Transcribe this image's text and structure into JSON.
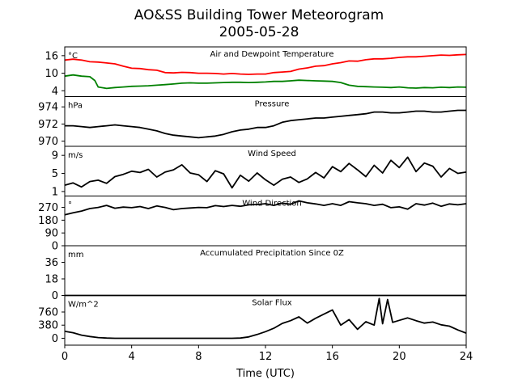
{
  "figure": {
    "title": "AO&SS Building Tower Meteorogram",
    "date": "2005-05-28",
    "xlabel": "Time (UTC)"
  },
  "chart_data": {
    "type": "line",
    "x_range": [
      0,
      24
    ],
    "x_ticks": [
      0,
      4,
      8,
      12,
      16,
      20,
      24
    ],
    "panels": [
      {
        "title": "Air and Dewpoint Temperature",
        "unit": "°C",
        "ylim": [
          2,
          19
        ],
        "yticks": [
          4,
          10,
          16
        ],
        "series": [
          {
            "color": "#ff0000",
            "x": [
              0,
              0.5,
              1,
              1.5,
              2,
              2.5,
              3,
              3.5,
              4,
              4.5,
              5,
              5.5,
              6,
              6.5,
              7,
              7.5,
              8,
              8.5,
              9,
              9.5,
              10,
              10.5,
              11,
              11.5,
              12,
              12.5,
              13,
              13.5,
              14,
              14.5,
              15,
              15.5,
              16,
              16.5,
              17,
              17.5,
              18,
              18.5,
              19,
              19.5,
              20,
              20.5,
              21,
              21.5,
              22,
              22.5,
              23,
              23.5,
              24
            ],
            "y": [
              14.5,
              14.8,
              14.5,
              13.9,
              13.8,
              13.5,
              13.2,
              12.4,
              11.7,
              11.6,
              11.2,
              11.0,
              10.2,
              10.1,
              10.3,
              10.2,
              10.0,
              10.0,
              9.9,
              9.7,
              9.9,
              9.7,
              9.6,
              9.7,
              9.7,
              10.2,
              10.4,
              10.6,
              11.4,
              11.8,
              12.4,
              12.6,
              13.2,
              13.6,
              14.2,
              14.1,
              14.6,
              14.9,
              14.9,
              15.1,
              15.4,
              15.6,
              15.6,
              15.8,
              16.0,
              16.2,
              16.1,
              16.3,
              16.4
            ]
          },
          {
            "color": "#008000",
            "x": [
              0,
              0.5,
              1,
              1.5,
              1.8,
              2,
              2.5,
              3,
              3.5,
              4,
              4.5,
              5,
              5.5,
              6,
              6.5,
              7,
              7.5,
              8,
              8.5,
              9,
              9.5,
              10,
              10.5,
              11,
              11.5,
              12,
              12.5,
              13,
              13.5,
              14,
              14.5,
              15,
              15.5,
              16,
              16.5,
              17,
              17.5,
              18,
              18.5,
              19,
              19.5,
              20,
              20.5,
              21,
              21.5,
              22,
              22.5,
              23,
              23.5,
              24
            ],
            "y": [
              9.0,
              9.4,
              9.0,
              8.8,
              7.5,
              5.3,
              4.8,
              5.1,
              5.3,
              5.5,
              5.6,
              5.7,
              5.9,
              6.1,
              6.3,
              6.6,
              6.7,
              6.6,
              6.6,
              6.7,
              6.8,
              6.9,
              6.9,
              6.8,
              6.9,
              7.0,
              7.2,
              7.2,
              7.4,
              7.6,
              7.5,
              7.4,
              7.3,
              7.2,
              6.8,
              5.9,
              5.5,
              5.4,
              5.3,
              5.2,
              5.1,
              5.3,
              5.0,
              4.9,
              5.1,
              5.0,
              5.2,
              5.1,
              5.3,
              5.2
            ]
          }
        ]
      },
      {
        "title": "Pressure",
        "unit": "hPa",
        "ylim": [
          969.4,
          975.2
        ],
        "yticks": [
          970,
          972,
          974
        ],
        "series": [
          {
            "color": "#000000",
            "x": [
              0,
              0.5,
              1,
              1.5,
              2,
              2.5,
              3,
              3.5,
              4,
              4.5,
              5,
              5.5,
              6,
              6.5,
              7,
              7.5,
              8,
              8.5,
              9,
              9.5,
              10,
              10.5,
              11,
              11.5,
              12,
              12.5,
              13,
              13.5,
              14,
              14.5,
              15,
              15.5,
              16,
              16.5,
              17,
              17.5,
              18,
              18.5,
              19,
              19.5,
              20,
              20.5,
              21,
              21.5,
              22,
              22.5,
              23,
              23.5,
              24
            ],
            "y": [
              971.8,
              971.8,
              971.7,
              971.6,
              971.7,
              971.8,
              971.9,
              971.8,
              971.7,
              971.6,
              971.4,
              971.2,
              970.9,
              970.7,
              970.6,
              970.5,
              970.4,
              970.5,
              970.6,
              970.8,
              971.1,
              971.3,
              971.4,
              971.6,
              971.6,
              971.8,
              972.2,
              972.4,
              972.5,
              972.6,
              972.7,
              972.7,
              972.8,
              972.9,
              973.0,
              973.1,
              973.2,
              973.4,
              973.4,
              973.3,
              973.3,
              973.4,
              973.5,
              973.5,
              973.4,
              973.4,
              973.5,
              973.6,
              973.6
            ]
          }
        ]
      },
      {
        "title": "Wind Speed",
        "unit": "m/s",
        "ylim": [
          0,
          11
        ],
        "yticks": [
          1,
          5,
          9
        ],
        "series": [
          {
            "color": "#000000",
            "x": [
              0,
              0.5,
              1,
              1.5,
              2,
              2.5,
              3,
              3.5,
              4,
              4.5,
              5,
              5.5,
              6,
              6.5,
              7,
              7.5,
              8,
              8.5,
              9,
              9.5,
              10,
              10.5,
              11,
              11.5,
              12,
              12.5,
              13,
              13.5,
              14,
              14.5,
              15,
              15.5,
              16,
              16.5,
              17,
              17.5,
              18,
              18.5,
              19,
              19.5,
              20,
              20.5,
              21,
              21.5,
              22,
              22.5,
              23,
              23.5,
              24
            ],
            "y": [
              2.4,
              2.9,
              2.0,
              3.2,
              3.5,
              2.8,
              4.3,
              4.8,
              5.5,
              5.2,
              5.9,
              4.2,
              5.3,
              5.8,
              6.9,
              5.1,
              4.7,
              3.2,
              5.6,
              4.9,
              1.8,
              4.6,
              3.3,
              5.1,
              3.6,
              2.4,
              3.7,
              4.2,
              3.0,
              3.8,
              5.2,
              4.0,
              6.5,
              5.4,
              7.2,
              5.8,
              4.3,
              6.8,
              5.1,
              7.9,
              6.3,
              8.6,
              5.4,
              7.3,
              6.6,
              4.2,
              6.1,
              5.0,
              5.3
            ]
          }
        ]
      },
      {
        "title": "Wind Direction",
        "unit": "°",
        "ylim": [
          0,
          350
        ],
        "yticks": [
          0,
          90,
          180,
          270
        ],
        "series": [
          {
            "color": "#000000",
            "x": [
              0,
              0.5,
              1,
              1.5,
              2,
              2.5,
              3,
              3.5,
              4,
              4.5,
              5,
              5.5,
              6,
              6.5,
              7,
              7.5,
              8,
              8.5,
              9,
              9.5,
              10,
              10.5,
              11,
              11.5,
              12,
              12.5,
              13,
              13.5,
              14,
              14.5,
              15,
              15.5,
              16,
              16.5,
              17,
              17.5,
              18,
              18.5,
              19,
              19.5,
              20,
              20.5,
              21,
              21.5,
              22,
              22.5,
              23,
              23.5,
              24
            ],
            "y": [
              218,
              232,
              244,
              262,
              270,
              284,
              264,
              272,
              268,
              276,
              262,
              280,
              270,
              254,
              262,
              266,
              270,
              268,
              282,
              276,
              284,
              278,
              288,
              290,
              296,
              284,
              300,
              292,
              316,
              302,
              294,
              284,
              296,
              284,
              310,
              302,
              296,
              284,
              292,
              268,
              274,
              258,
              296,
              286,
              300,
              278,
              294,
              288,
              296
            ]
          }
        ]
      },
      {
        "title": "Accumulated Precipitation Since 0Z",
        "unit": "mm",
        "ylim": [
          0,
          54
        ],
        "yticks": [
          0,
          18,
          36
        ],
        "series": [
          {
            "color": "#000000",
            "x": [
              0,
              24
            ],
            "y": [
              0,
              0
            ]
          }
        ]
      },
      {
        "title": "Solar Flux",
        "unit": "W/m^2",
        "ylim": [
          -200,
          1240
        ],
        "yticks": [
          0,
          380,
          760
        ],
        "series": [
          {
            "color": "#000000",
            "x": [
              0,
              0.5,
              1,
              1.5,
              2,
              2.5,
              3,
              4,
              5,
              6,
              7,
              8,
              9,
              10,
              10.5,
              11,
              11.5,
              12,
              12.5,
              13,
              13.5,
              14,
              14.5,
              15,
              15.5,
              16,
              16.5,
              17,
              17.5,
              18,
              18.5,
              18.8,
              19,
              19.3,
              19.6,
              20,
              20.5,
              21,
              21.5,
              22,
              22.5,
              23,
              23.5,
              24
            ],
            "y": [
              200,
              160,
              90,
              50,
              20,
              5,
              0,
              0,
              0,
              0,
              0,
              0,
              0,
              0,
              5,
              40,
              110,
              190,
              290,
              430,
              510,
              620,
              440,
              580,
              700,
              820,
              380,
              540,
              260,
              480,
              380,
              1150,
              420,
              1120,
              460,
              520,
              590,
              510,
              440,
              470,
              390,
              350,
              240,
              150
            ]
          }
        ]
      }
    ]
  }
}
